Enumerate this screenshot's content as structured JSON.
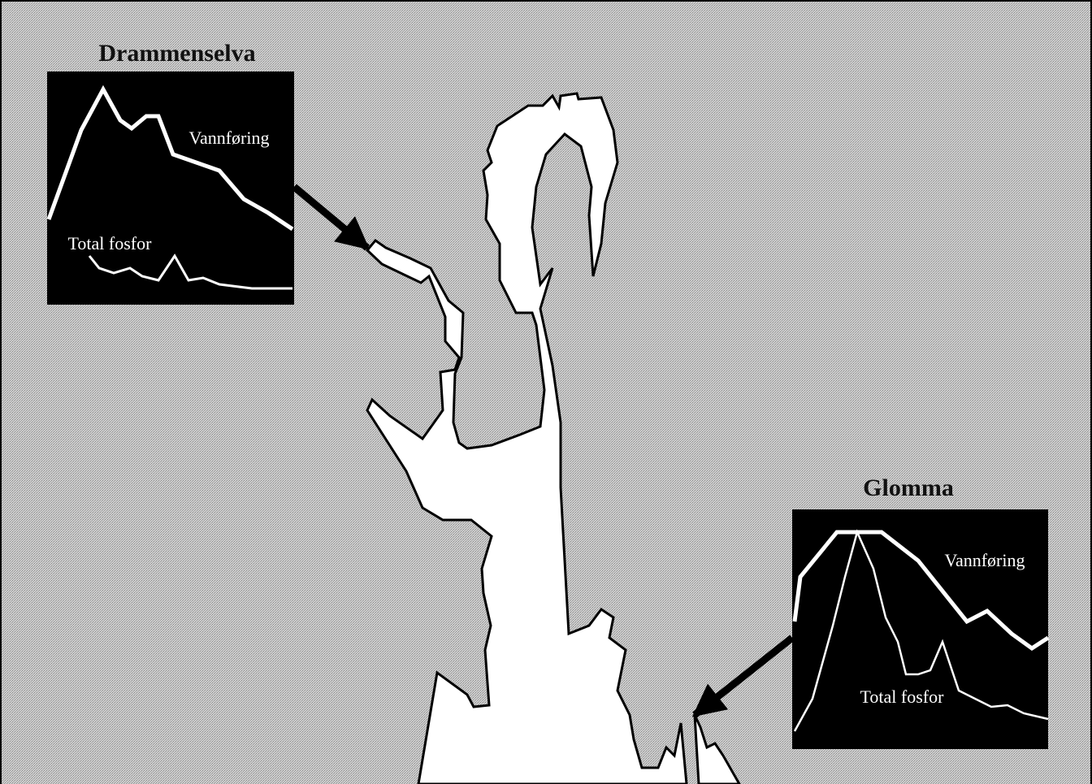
{
  "insets": [
    {
      "title": "Drammenselva",
      "labels": [
        "Vannføring",
        "Total fosfor"
      ]
    },
    {
      "title": "Glomma",
      "labels": [
        "Vannføring",
        "Total fosfor"
      ]
    }
  ]
}
